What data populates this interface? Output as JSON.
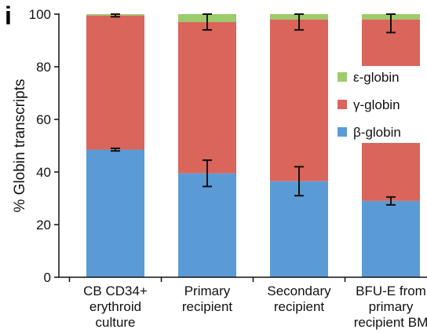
{
  "panel_label": "i",
  "chart_data": {
    "type": "bar",
    "stacked": true,
    "categories": [
      [
        "CB CD34+",
        "erythroid",
        "culture"
      ],
      [
        "Primary",
        "recipient"
      ],
      [
        "Secondary",
        "recipient"
      ],
      [
        "BFU-E from",
        "primary",
        "recipient BM"
      ]
    ],
    "series": [
      {
        "name": "β-globin",
        "color": "#5b9bd5",
        "values": [
          48.5,
          39.5,
          36.5,
          29
        ],
        "errors": [
          0.5,
          5,
          5.5,
          1.5
        ]
      },
      {
        "name": "γ-globin",
        "color": "#d9655b",
        "values": [
          51,
          57.5,
          61.5,
          69
        ],
        "errors": [
          0.5,
          3,
          4,
          5
        ]
      },
      {
        "name": "ε-globin",
        "color": "#9ccb6b",
        "values": [
          0.5,
          3,
          2,
          2
        ],
        "errors": [
          0,
          0,
          0,
          0
        ]
      }
    ],
    "legend_order": [
      "ε-globin",
      "γ-globin",
      "β-globin"
    ],
    "legend_position": "inside-right",
    "ylabel": "% Globin transcripts",
    "xlabel": "",
    "ylim": [
      0,
      100
    ],
    "yticks": [
      0,
      20,
      40,
      60,
      80,
      100
    ],
    "grid": false
  }
}
